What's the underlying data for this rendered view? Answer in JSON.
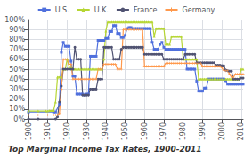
{
  "chart_data": {
    "type": "line",
    "title": "Top Marginal Income Tax Rates, 1900-2011",
    "xlim": [
      1900,
      2011
    ],
    "xticks": [
      1900,
      1910,
      1920,
      1930,
      1940,
      1950,
      1960,
      1970,
      1980,
      1990,
      2000,
      2010
    ],
    "ylim": [
      0,
      1.0
    ],
    "yticks": [
      {
        "value": 0,
        "label": "0%"
      },
      {
        "value": 0.1,
        "label": "10%"
      },
      {
        "value": 0.2,
        "label": "20%"
      },
      {
        "value": 0.3,
        "label": "30%"
      },
      {
        "value": 0.4,
        "label": "40%"
      },
      {
        "value": 0.5,
        "label": "50%"
      },
      {
        "value": 0.6,
        "label": "60%"
      },
      {
        "value": 0.7,
        "label": "70%"
      },
      {
        "value": 0.8,
        "label": "80%"
      },
      {
        "value": 0.9,
        "label": "90%"
      },
      {
        "value": 1.0,
        "label": "100%"
      }
    ],
    "grid": true,
    "legend": "top",
    "series": [
      {
        "name": "U.S.",
        "marker": "square",
        "x": [
          1900,
          1913,
          1914,
          1916,
          1917,
          1918,
          1919,
          1920,
          1921,
          1922,
          1923,
          1924,
          1925,
          1926,
          1927,
          1928,
          1929,
          1930,
          1931,
          1932,
          1933,
          1934,
          1935,
          1936,
          1937,
          1938,
          1939,
          1940,
          1941,
          1942,
          1943,
          1944,
          1945,
          1946,
          1947,
          1948,
          1949,
          1950,
          1951,
          1952,
          1953,
          1954,
          1955,
          1956,
          1957,
          1958,
          1959,
          1960,
          1961,
          1962,
          1963,
          1964,
          1965,
          1966,
          1967,
          1968,
          1969,
          1970,
          1971,
          1972,
          1973,
          1974,
          1975,
          1976,
          1977,
          1978,
          1979,
          1980,
          1981,
          1982,
          1983,
          1984,
          1985,
          1986,
          1987,
          1988,
          1989,
          1990,
          1991,
          1992,
          1993,
          1994,
          1995,
          1996,
          1997,
          1998,
          1999,
          2000,
          2001,
          2002,
          2003,
          2004,
          2005,
          2006,
          2007,
          2008,
          2009,
          2010,
          2011
        ],
        "values": [
          0.07,
          0.07,
          0.07,
          0.15,
          0.67,
          0.77,
          0.73,
          0.73,
          0.73,
          0.58,
          0.43,
          0.43,
          0.25,
          0.25,
          0.25,
          0.25,
          0.24,
          0.25,
          0.25,
          0.63,
          0.63,
          0.63,
          0.63,
          0.79,
          0.79,
          0.79,
          0.79,
          0.81,
          0.81,
          0.88,
          0.88,
          0.94,
          0.94,
          0.86,
          0.86,
          0.82,
          0.82,
          0.84,
          0.91,
          0.92,
          0.92,
          0.91,
          0.91,
          0.91,
          0.91,
          0.91,
          0.91,
          0.91,
          0.91,
          0.91,
          0.91,
          0.77,
          0.7,
          0.7,
          0.7,
          0.75,
          0.77,
          0.72,
          0.7,
          0.7,
          0.7,
          0.7,
          0.7,
          0.7,
          0.7,
          0.7,
          0.7,
          0.7,
          0.7,
          0.5,
          0.5,
          0.5,
          0.5,
          0.5,
          0.38,
          0.28,
          0.28,
          0.28,
          0.31,
          0.31,
          0.4,
          0.4,
          0.4,
          0.4,
          0.4,
          0.4,
          0.4,
          0.4,
          0.4,
          0.385,
          0.35,
          0.35,
          0.35,
          0.35,
          0.35,
          0.35,
          0.35,
          0.35,
          0.35
        ]
      },
      {
        "name": "U.K.",
        "marker": "triangle",
        "x": [
          1900,
          1905,
          1909,
          1910,
          1911,
          1912,
          1913,
          1914,
          1915,
          1916,
          1917,
          1918,
          1919,
          1920,
          1921,
          1922,
          1923,
          1924,
          1925,
          1926,
          1927,
          1928,
          1929,
          1930,
          1931,
          1932,
          1933,
          1934,
          1935,
          1936,
          1937,
          1938,
          1939,
          1940,
          1941,
          1942,
          1943,
          1944,
          1945,
          1946,
          1947,
          1948,
          1949,
          1950,
          1951,
          1952,
          1953,
          1954,
          1955,
          1956,
          1957,
          1958,
          1959,
          1960,
          1961,
          1962,
          1963,
          1964,
          1965,
          1966,
          1967,
          1968,
          1969,
          1970,
          1971,
          1972,
          1973,
          1974,
          1975,
          1976,
          1977,
          1978,
          1979,
          1980,
          1981,
          1982,
          1983,
          1984,
          1985,
          1986,
          1987,
          1988,
          1989,
          1990,
          1991,
          1992,
          1993,
          1994,
          1995,
          1996,
          1997,
          1998,
          1999,
          2000,
          2001,
          2002,
          2003,
          2004,
          2005,
          2006,
          2007,
          2008,
          2009,
          2010,
          2011
        ],
        "values": [
          0.08,
          0.08,
          0.08,
          0.08,
          0.085,
          0.085,
          0.085,
          0.17,
          0.42,
          0.42,
          0.42,
          0.5,
          0.5,
          0.6,
          0.525,
          0.525,
          0.5,
          0.5,
          0.5,
          0.5,
          0.5,
          0.5,
          0.5,
          0.5,
          0.5,
          0.5,
          0.5,
          0.5,
          0.5,
          0.5,
          0.5,
          0.5,
          0.6,
          0.885,
          0.975,
          0.975,
          0.975,
          0.975,
          0.975,
          0.975,
          0.975,
          0.975,
          0.975,
          0.975,
          0.975,
          0.975,
          0.975,
          0.975,
          0.975,
          0.975,
          0.975,
          0.975,
          0.975,
          0.975,
          0.975,
          0.975,
          0.975,
          0.975,
          0.83,
          0.91,
          0.91,
          0.91,
          0.91,
          0.91,
          0.75,
          0.75,
          0.75,
          0.83,
          0.83,
          0.83,
          0.83,
          0.83,
          0.83,
          0.6,
          0.6,
          0.6,
          0.6,
          0.6,
          0.6,
          0.6,
          0.6,
          0.4,
          0.4,
          0.4,
          0.4,
          0.4,
          0.4,
          0.4,
          0.4,
          0.4,
          0.4,
          0.4,
          0.4,
          0.4,
          0.4,
          0.4,
          0.4,
          0.4,
          0.4,
          0.4,
          0.4,
          0.4,
          0.4,
          0.5,
          0.5
        ]
      },
      {
        "name": "France",
        "marker": "circle",
        "x": [
          1900,
          1905,
          1914,
          1915,
          1916,
          1917,
          1918,
          1919,
          1920,
          1921,
          1922,
          1923,
          1924,
          1925,
          1926,
          1927,
          1928,
          1929,
          1930,
          1931,
          1932,
          1933,
          1934,
          1935,
          1936,
          1937,
          1938,
          1939,
          1940,
          1941,
          1942,
          1943,
          1944,
          1945,
          1946,
          1947,
          1948,
          1949,
          1950,
          1951,
          1952,
          1953,
          1954,
          1955,
          1956,
          1957,
          1958,
          1959,
          1960,
          1961,
          1962,
          1963,
          1964,
          1965,
          1966,
          1967,
          1968,
          1969,
          1970,
          1971,
          1972,
          1973,
          1974,
          1975,
          1976,
          1977,
          1978,
          1979,
          1980,
          1981,
          1982,
          1983,
          1984,
          1985,
          1986,
          1987,
          1988,
          1989,
          1990,
          1991,
          1992,
          1993,
          1994,
          1995,
          1996,
          1997,
          1998,
          1999,
          2000,
          2001,
          2002,
          2003,
          2004,
          2005,
          2006,
          2007,
          2008,
          2009,
          2010,
          2011
        ],
        "values": [
          0.0,
          0.0,
          0.0,
          0.02,
          0.17,
          0.33,
          0.5,
          0.5,
          0.5,
          0.5,
          0.5,
          0.5,
          0.72,
          0.6,
          0.6,
          0.6,
          0.24,
          0.24,
          0.24,
          0.24,
          0.3,
          0.3,
          0.3,
          0.3,
          0.4,
          0.4,
          0.4,
          0.72,
          0.72,
          0.72,
          0.72,
          0.72,
          0.6,
          0.6,
          0.6,
          0.6,
          0.7,
          0.72,
          0.72,
          0.72,
          0.72,
          0.72,
          0.72,
          0.72,
          0.72,
          0.72,
          0.72,
          0.72,
          0.65,
          0.65,
          0.65,
          0.65,
          0.65,
          0.65,
          0.65,
          0.65,
          0.65,
          0.65,
          0.6,
          0.6,
          0.6,
          0.6,
          0.6,
          0.6,
          0.6,
          0.6,
          0.6,
          0.6,
          0.6,
          0.65,
          0.65,
          0.65,
          0.65,
          0.65,
          0.65,
          0.565,
          0.565,
          0.565,
          0.565,
          0.565,
          0.565,
          0.565,
          0.565,
          0.565,
          0.565,
          0.54,
          0.54,
          0.54,
          0.535,
          0.535,
          0.49,
          0.485,
          0.48,
          0.48,
          0.4,
          0.4,
          0.4,
          0.4,
          0.41,
          0.41
        ]
      },
      {
        "name": "Germany",
        "marker": "plus",
        "x": [
          1900,
          1905,
          1910,
          1913,
          1914,
          1915,
          1916,
          1917,
          1918,
          1919,
          1920,
          1921,
          1922,
          1923,
          1924,
          1925,
          1926,
          1927,
          1928,
          1929,
          1930,
          1931,
          1932,
          1933,
          1934,
          1935,
          1936,
          1937,
          1938,
          1939,
          1940,
          1941,
          1942,
          1943,
          1944,
          1945,
          1946,
          1947,
          1948,
          1949,
          1950,
          1951,
          1952,
          1953,
          1954,
          1955,
          1956,
          1957,
          1958,
          1959,
          1960,
          1961,
          1962,
          1963,
          1964,
          1965,
          1966,
          1967,
          1968,
          1969,
          1970,
          1971,
          1972,
          1973,
          1974,
          1975,
          1976,
          1977,
          1978,
          1979,
          1980,
          1981,
          1982,
          1983,
          1984,
          1985,
          1986,
          1987,
          1988,
          1989,
          1990,
          1991,
          1992,
          1993,
          1994,
          1995,
          1996,
          1997,
          1998,
          1999,
          2000,
          2001,
          2002,
          2003,
          2004,
          2005,
          2006,
          2007,
          2008,
          2009,
          2010,
          2011
        ],
        "values": [
          0.04,
          0.04,
          0.04,
          0.04,
          0.04,
          0.04,
          0.055,
          0.3,
          0.6,
          0.6,
          0.6,
          0.55,
          0.55,
          0.4,
          0.4,
          0.4,
          0.4,
          0.4,
          0.4,
          0.4,
          0.4,
          0.4,
          0.4,
          0.4,
          0.4,
          0.4,
          0.5,
          0.5,
          0.5,
          0.55,
          0.55,
          0.55,
          0.55,
          0.55,
          0.55,
          0.55,
          0.5,
          0.5,
          0.5,
          0.9,
          0.9,
          0.9,
          0.9,
          0.9,
          0.9,
          0.9,
          0.9,
          0.9,
          0.9,
          0.9,
          0.53,
          0.53,
          0.53,
          0.53,
          0.53,
          0.53,
          0.53,
          0.53,
          0.53,
          0.53,
          0.53,
          0.56,
          0.56,
          0.56,
          0.56,
          0.56,
          0.56,
          0.56,
          0.56,
          0.56,
          0.56,
          0.56,
          0.56,
          0.56,
          0.56,
          0.56,
          0.56,
          0.56,
          0.56,
          0.56,
          0.53,
          0.53,
          0.53,
          0.53,
          0.53,
          0.53,
          0.53,
          0.53,
          0.53,
          0.53,
          0.515,
          0.485,
          0.485,
          0.485,
          0.45,
          0.42,
          0.42,
          0.45,
          0.45,
          0.45,
          0.45,
          0.45
        ]
      }
    ]
  }
}
